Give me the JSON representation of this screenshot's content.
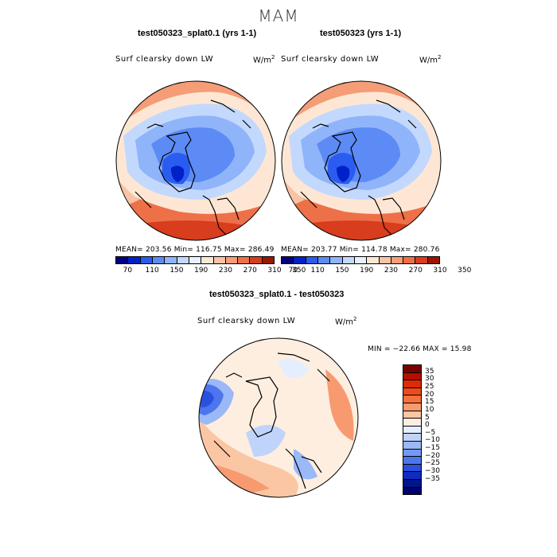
{
  "figure": {
    "title": "MAM"
  },
  "panels": {
    "left": {
      "title": "test050323_splat0.1 (yrs 1-1)",
      "variable": "Surf clearsky down LW",
      "units_base": "W/m",
      "units_exp": "2",
      "stats": "MEAN= 203.56   Min= 116.75   Max= 286.49"
    },
    "right": {
      "title": "test050323 (yrs 1-1)",
      "variable": "Surf clearsky down LW",
      "units_base": "W/m",
      "units_exp": "2",
      "stats": "MEAN= 203.77   Min= 114.78   Max= 280.76"
    },
    "diff": {
      "title": "test050323_splat0.1 - test050323",
      "variable": "Surf clearsky down LW",
      "units_base": "W/m",
      "units_exp": "2",
      "stats": "MIN = −22.66  MAX =  15.98"
    }
  },
  "colorbars": {
    "abs_colors": [
      "#00007f",
      "#0020c8",
      "#2a5cf0",
      "#5d8bf5",
      "#8fb4fa",
      "#c3d8fd",
      "#e9f1ff",
      "#fde7d4",
      "#f9c3a5",
      "#f49d77",
      "#ee7049",
      "#d83d1e",
      "#9b1500"
    ],
    "abs_ticks": [
      "70",
      "110",
      "150",
      "190",
      "230",
      "270",
      "310",
      "350"
    ],
    "diff_colors": [
      "#7a0000",
      "#b41000",
      "#dd2a08",
      "#f04a1c",
      "#f5703d",
      "#f89a70",
      "#fbc6a4",
      "#feeee0",
      "#e5eeff",
      "#c0d3fb",
      "#9bb8f7",
      "#7499f3",
      "#4d76ee",
      "#2a50de",
      "#0f2bc0",
      "#00148c",
      "#00006e"
    ],
    "diff_ticks": [
      "35",
      "30",
      "25",
      "20",
      "15",
      "10",
      "5",
      "0",
      "−5",
      "−10",
      "−15",
      "−20",
      "−25",
      "−30",
      "−35"
    ]
  },
  "chart_data": [
    {
      "type": "heatmap",
      "title": "test050323_splat0.1 (yrs 1-1)",
      "projection": "north polar stereographic",
      "variable": "Surf clearsky down LW",
      "units": "W/m^2",
      "mean": 203.56,
      "min": 116.75,
      "max": 286.49,
      "levels": [
        70,
        90,
        110,
        130,
        150,
        170,
        190,
        210,
        230,
        250,
        270,
        290,
        310,
        330,
        350
      ]
    },
    {
      "type": "heatmap",
      "title": "test050323 (yrs 1-1)",
      "projection": "north polar stereographic",
      "variable": "Surf clearsky down LW",
      "units": "W/m^2",
      "mean": 203.77,
      "min": 114.78,
      "max": 280.76,
      "levels": [
        70,
        90,
        110,
        130,
        150,
        170,
        190,
        210,
        230,
        250,
        270,
        290,
        310,
        330,
        350
      ]
    },
    {
      "type": "heatmap",
      "title": "test050323_splat0.1 - test050323",
      "projection": "north polar stereographic",
      "variable": "Surf clearsky down LW",
      "units": "W/m^2",
      "min": -22.66,
      "max": 15.98,
      "levels": [
        -35,
        -30,
        -25,
        -20,
        -15,
        -10,
        -5,
        0,
        5,
        10,
        15,
        20,
        25,
        30,
        35
      ]
    }
  ]
}
